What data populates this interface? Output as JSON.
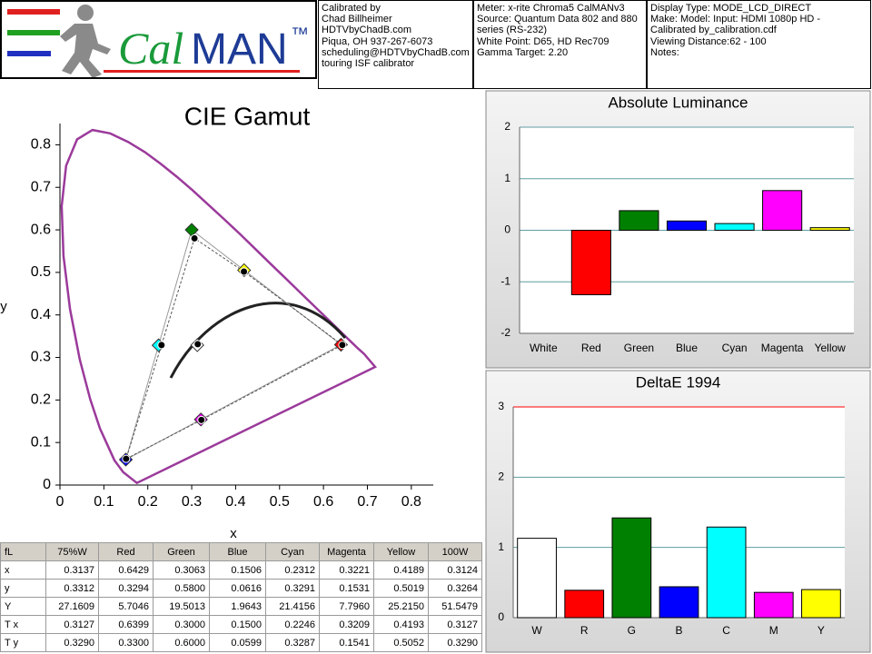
{
  "header": {
    "logo": {
      "cal": "Cal",
      "man": "MAN",
      "tm": "™"
    },
    "boxes": [
      [
        "Calibrated by",
        "Chad Billheimer",
        "HDTVbyChadB.com",
        "Piqua, OH 937-267-6073",
        "scheduling@HDTVbyChadB.com",
        "touring ISF calibrator"
      ],
      [
        "Meter: x-rite Chroma5 CalMANv3",
        "Source: Quantum Data 802 and 880 series (RS-232)",
        "White Point: D65, HD Rec709",
        "Gamma Target: 2.20"
      ],
      [
        "Display Type: MODE_LCD_DIRECT",
        "Make: Model: Input: HDMI 1080p HD    -",
        "Calibrated by_calibration.cdf",
        "Viewing Distance:62 - 100",
        "Notes:"
      ]
    ]
  },
  "chart_data": [
    {
      "type": "scatter",
      "title": "CIE Gamut",
      "x_label": "x",
      "y_label": "y",
      "xlim": [
        0,
        0.85
      ],
      "ylim": [
        0,
        0.85
      ],
      "xticks": [
        0,
        0.1,
        0.2,
        0.3,
        0.4,
        0.5,
        0.6,
        0.7,
        0.8
      ],
      "yticks": [
        0,
        0.1,
        0.2,
        0.3,
        0.4,
        0.5,
        0.6,
        0.7,
        0.8
      ],
      "series": [
        {
          "marker": "diamond",
          "colors": [
            "#ffffff",
            "#ff0000",
            "#008000",
            "#0000ff",
            "#00ffff",
            "#ff00ff",
            "#ffff00"
          ],
          "x": [
            0.3127,
            0.6399,
            0.3,
            0.15,
            0.2246,
            0.3209,
            0.4193
          ],
          "y": [
            0.329,
            0.33,
            0.6,
            0.0599,
            0.3287,
            0.1541,
            0.5052
          ]
        },
        {
          "marker": "circle",
          "color": "#000000",
          "x": [
            0.3137,
            0.6429,
            0.3063,
            0.1506,
            0.2312,
            0.3221,
            0.4189
          ],
          "y": [
            0.3312,
            0.3294,
            0.58,
            0.0616,
            0.3291,
            0.1531,
            0.5019
          ]
        }
      ]
    },
    {
      "type": "bar",
      "title": "Absolute Luminance",
      "categories": [
        "White",
        "Red",
        "Green",
        "Blue",
        "Cyan",
        "Magenta",
        "Yellow"
      ],
      "values": [
        0,
        -1.25,
        0.38,
        0.18,
        0.13,
        0.77,
        0.05
      ],
      "colors": [
        "#ffffff",
        "#ff0000",
        "#008000",
        "#0000ff",
        "#00ffff",
        "#ff00ff",
        "#ffff00"
      ],
      "ylim": [
        -2,
        2
      ],
      "yticks": [
        -2,
        -1,
        0,
        1,
        2
      ],
      "grid": true,
      "grid_color": "#5f9ea0"
    },
    {
      "type": "bar",
      "title": "DeltaE 1994",
      "categories": [
        "W",
        "R",
        "G",
        "B",
        "C",
        "M",
        "Y"
      ],
      "values": [
        1.13,
        0.39,
        1.42,
        0.44,
        1.29,
        0.36,
        0.4
      ],
      "colors": [
        "#ffffff",
        "#ff0000",
        "#008000",
        "#0000ff",
        "#00ffff",
        "#ff00ff",
        "#ffff00"
      ],
      "ylim": [
        0,
        3
      ],
      "yticks": [
        0,
        1,
        2,
        3
      ],
      "grid": true,
      "grid_color": "#5f9ea0",
      "threshold": 3,
      "threshold_color": "#ff0000"
    }
  ],
  "table": {
    "header": [
      "fL",
      "75%W",
      "Red",
      "Green",
      "Blue",
      "Cyan",
      "Magenta",
      "Yellow",
      "100W"
    ],
    "rows": [
      [
        "x",
        "0.3137",
        "0.6429",
        "0.3063",
        "0.1506",
        "0.2312",
        "0.3221",
        "0.4189",
        "0.3124"
      ],
      [
        "y",
        "0.3312",
        "0.3294",
        "0.5800",
        "0.0616",
        "0.3291",
        "0.1531",
        "0.5019",
        "0.3264"
      ],
      [
        "Y",
        "27.1609",
        "5.7046",
        "19.5013",
        "1.9643",
        "21.4156",
        "7.7960",
        "25.2150",
        "51.5479"
      ],
      [
        "T x",
        "0.3127",
        "0.6399",
        "0.3000",
        "0.1500",
        "0.2246",
        "0.3209",
        "0.4193",
        "0.3127"
      ],
      [
        "T y",
        "0.3290",
        "0.3300",
        "0.6000",
        "0.0599",
        "0.3287",
        "0.1541",
        "0.5052",
        "0.3290"
      ]
    ]
  }
}
